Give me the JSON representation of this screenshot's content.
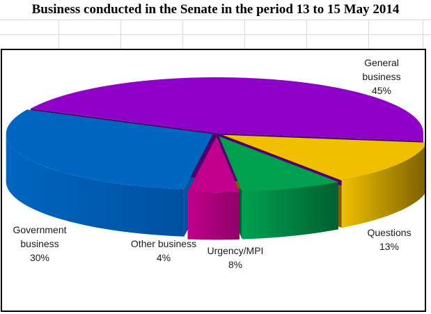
{
  "chart_data": {
    "type": "pie",
    "style": "3d-exploded-depth",
    "title": "Business conducted in the Senate in the period 13 to 15 May 2014",
    "slices": [
      {
        "label_lines": [
          "General",
          "business"
        ],
        "value": 45,
        "percent_label": "45%",
        "color": "#8f00c8",
        "side_color": "#4e0070"
      },
      {
        "label_lines": [
          "Questions"
        ],
        "value": 13,
        "percent_label": "13%",
        "color": "#f0c000",
        "side_color": "#7a6000"
      },
      {
        "label_lines": [
          "Urgency/MPI"
        ],
        "value": 8,
        "percent_label": "8%",
        "color": "#00a050",
        "side_color": "#006030"
      },
      {
        "label_lines": [
          "Other business"
        ],
        "value": 4,
        "percent_label": "4%",
        "color": "#c0008a",
        "side_color": "#900068"
      },
      {
        "label_lines": [
          "Government",
          "business"
        ],
        "value": 30,
        "percent_label": "30%",
        "color": "#0066c0",
        "side_color": "#0050a0"
      }
    ]
  }
}
